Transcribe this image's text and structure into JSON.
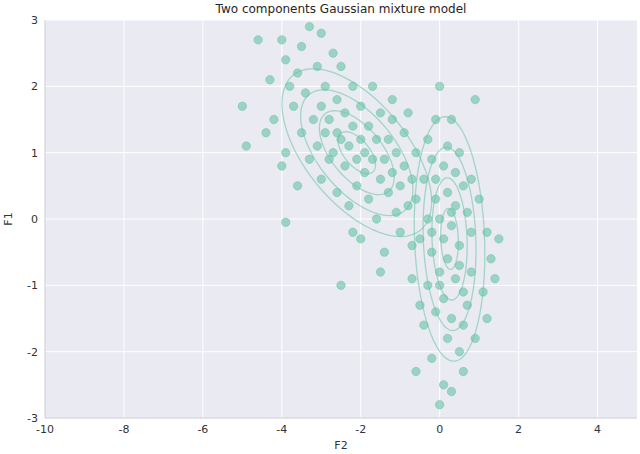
{
  "chart_data": {
    "type": "scatter",
    "title": "Two components Gaussian mixture model",
    "x_label": "F2",
    "y_label": "F1",
    "color": "#66c2a5",
    "marker": "circle",
    "grid": true,
    "xlim": [
      -10,
      5
    ],
    "xticks": [
      -10,
      -8,
      -6,
      -4,
      -2,
      0,
      2,
      4
    ],
    "ylim": [
      -3,
      3
    ],
    "yticks": [
      -3,
      -2,
      -1,
      0,
      1,
      2,
      3
    ],
    "x": [
      -4.9,
      -5.0,
      -4.6,
      -4.3,
      -4.2,
      -4.0,
      -3.9,
      -3.8,
      -3.7,
      -3.9,
      -4.0,
      -3.9,
      -3.6,
      -3.5,
      -3.5,
      -3.4,
      -3.3,
      -3.3,
      -3.2,
      -3.1,
      -3.1,
      -3.0,
      -3.0,
      -2.9,
      -2.9,
      -2.8,
      -2.8,
      -2.7,
      -2.7,
      -2.6,
      -2.6,
      -2.5,
      -2.5,
      -2.5,
      -2.4,
      -2.4,
      -2.3,
      -2.3,
      -2.2,
      -2.2,
      -2.1,
      -2.1,
      -2.0,
      -2.0,
      -2.0,
      -1.9,
      -1.9,
      -1.8,
      -1.8,
      -1.7,
      -1.7,
      -1.6,
      -1.6,
      -1.5,
      -1.5,
      -1.4,
      -1.4,
      -1.3,
      -1.3,
      -1.2,
      -1.2,
      -1.1,
      -1.1,
      -1.0,
      -1.0,
      -0.9,
      -0.9,
      -0.8,
      -0.8,
      -0.7,
      -0.7,
      -0.6,
      -0.6,
      -1.5,
      -2.6,
      -3.6,
      -2.2,
      -1.2,
      -4.4,
      -3.0,
      0.0,
      0.9,
      -0.3,
      0.3,
      0.5,
      -0.2,
      0.1,
      0.6,
      -0.4,
      0.2,
      0.4,
      -0.1,
      0.0,
      0.3,
      0.7,
      -0.3,
      0.1,
      0.5,
      -0.2,
      0.2,
      0.8,
      -0.5,
      0.0,
      0.4,
      -0.3,
      0.6,
      0.1,
      -0.1,
      0.3,
      0.7,
      -0.4,
      0.2,
      0.5,
      -0.2,
      0.1,
      0.0,
      -0.6,
      0.8,
      1.2,
      1.0,
      1.3,
      1.5,
      1.1,
      1.2,
      0.9,
      0.6,
      -0.5,
      -0.7,
      -0.1,
      0.4,
      0.2,
      -0.2,
      0.3,
      0.5,
      0.0,
      -0.1,
      0.6,
      0.3,
      1.4,
      0.8
    ],
    "values": [
      1.1,
      1.7,
      2.7,
      2.1,
      1.5,
      2.7,
      2.4,
      2.0,
      1.7,
      1.0,
      0.8,
      -0.05,
      2.2,
      2.6,
      1.3,
      1.9,
      0.9,
      2.9,
      1.5,
      2.3,
      1.1,
      1.7,
      0.6,
      2.0,
      1.3,
      0.9,
      1.5,
      2.5,
      1.0,
      1.8,
      0.4,
      1.2,
      2.3,
      -1.0,
      0.8,
      1.6,
      1.1,
      0.2,
      2.0,
      1.4,
      0.9,
      0.5,
      1.2,
      1.7,
      -0.3,
      0.7,
      1.0,
      1.4,
      0.3,
      2.0,
      0.9,
      1.2,
      0.0,
      0.6,
      1.6,
      0.9,
      -0.5,
      1.2,
      0.4,
      0.7,
      1.8,
      0.1,
      1.0,
      0.5,
      -0.2,
      1.3,
      0.8,
      0.2,
      1.6,
      0.6,
      -0.4,
      1.0,
      0.3,
      -0.8,
      1.3,
      0.5,
      -0.2,
      1.5,
      1.3,
      2.8,
      2.0,
      1.8,
      1.2,
      1.5,
      1.0,
      0.9,
      0.8,
      0.5,
      0.6,
      0.4,
      0.2,
      0.3,
      0.0,
      -0.1,
      0.1,
      0.0,
      -0.3,
      -0.4,
      -0.5,
      -0.6,
      -0.2,
      -0.3,
      -0.8,
      -0.9,
      -1.0,
      -1.1,
      -1.2,
      -1.4,
      -1.5,
      -1.3,
      -1.6,
      -1.8,
      -2.0,
      -2.1,
      -2.5,
      -2.8,
      -2.3,
      -0.8,
      -0.2,
      0.3,
      -0.6,
      -0.3,
      -1.1,
      -1.5,
      -1.8,
      -1.6,
      -1.3,
      -0.9,
      0.6,
      0.7,
      1.1,
      -0.2,
      0.1,
      -0.7,
      -1.0,
      1.5,
      -2.3,
      -2.6,
      -0.9,
      0.6
    ],
    "components": [
      {
        "mean": [
          -2.1,
          1.0
        ],
        "cov": [
          [
            0.9,
            -0.35
          ],
          [
            -0.35,
            0.4
          ]
        ]
      },
      {
        "mean": [
          0.25,
          -0.3
        ],
        "cov": [
          [
            0.2,
            -0.05
          ],
          [
            -0.05,
            0.85
          ]
        ]
      }
    ],
    "contour_levels": [
      0.5,
      1,
      1.5,
      2
    ]
  }
}
